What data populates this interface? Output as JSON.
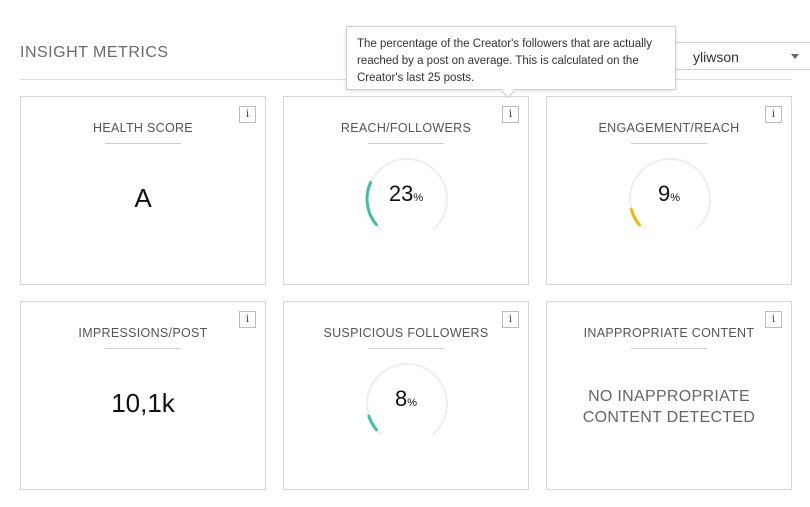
{
  "header": {
    "title": "INSIGHT METRICS",
    "select_value": "yliwson"
  },
  "tooltip": {
    "text": "The percentage of the Creator's followers that are actually reached by a post on average. This is calculated on the Creator's last 25 posts."
  },
  "info_label": "i",
  "cards": {
    "health": {
      "label": "HEALTH SCORE",
      "value": "A"
    },
    "reach": {
      "label": "REACH/FOLLOWERS",
      "value": "23",
      "unit": "%",
      "percent": 23,
      "color": "#3dbfa9"
    },
    "engagement": {
      "label": "ENGAGEMENT/REACH",
      "value": "9",
      "unit": "%",
      "percent": 9,
      "color": "#f2b705"
    },
    "impressions": {
      "label": "IMPRESSIONS/POST",
      "value": "10,1k"
    },
    "suspicious": {
      "label": "SUSPICIOUS FOLLOWERS",
      "value": "8",
      "unit": "%",
      "percent": 8,
      "color": "#3dbfa9"
    },
    "inappropriate": {
      "label": "INAPPROPRIATE CONTENT",
      "line1": "NO INAPPROPRIATE",
      "line2": "CONTENT DETECTED"
    }
  },
  "colors": {
    "track": "#eeeeee"
  }
}
